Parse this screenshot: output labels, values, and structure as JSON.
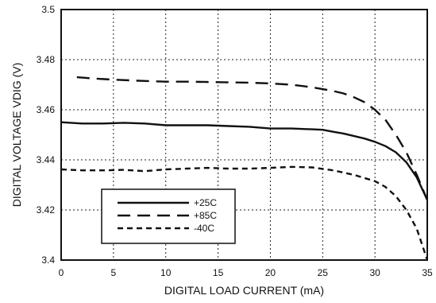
{
  "chart_data": {
    "type": "line",
    "title": "",
    "xlabel": "DIGITAL LOAD CURRENT (mA)",
    "ylabel": "DIGITAL VOLTAGE VDIG (V)",
    "xlim": [
      0,
      35
    ],
    "ylim": [
      3.4,
      3.5
    ],
    "x_ticks": [
      0,
      5,
      10,
      15,
      20,
      25,
      30,
      35
    ],
    "x_tick_labels": [
      "0",
      "5",
      "10",
      "15",
      "20",
      "25",
      "30",
      "35"
    ],
    "y_ticks": [
      3.4,
      3.42,
      3.44,
      3.46,
      3.48,
      3.5
    ],
    "y_tick_labels": [
      "3.4",
      "3.42",
      "3.44",
      "3.46",
      "3.48",
      "3.5"
    ],
    "grid": true,
    "legend_position": "bottom-left",
    "series": [
      {
        "name": "+25C",
        "style": "solid",
        "color": "#111111",
        "x": [
          0,
          2,
          4,
          6,
          8,
          10,
          12,
          14,
          16,
          18,
          20,
          22,
          24,
          25,
          26,
          27,
          28,
          29,
          30,
          31,
          32,
          33,
          34,
          35
        ],
        "y": [
          3.455,
          3.4545,
          3.4545,
          3.4548,
          3.4545,
          3.4538,
          3.4538,
          3.4538,
          3.4535,
          3.4532,
          3.4525,
          3.4525,
          3.4522,
          3.452,
          3.4512,
          3.4505,
          3.4495,
          3.4485,
          3.4472,
          3.4455,
          3.443,
          3.439,
          3.433,
          3.424
        ]
      },
      {
        "name": "+85C",
        "style": "long-dash",
        "color": "#111111",
        "x": [
          1.5,
          3,
          5,
          8,
          10,
          12,
          15,
          18,
          20,
          22,
          24,
          26,
          27,
          28,
          29,
          30,
          31,
          32,
          33,
          34,
          35
        ],
        "y": [
          3.473,
          3.4725,
          3.472,
          3.4715,
          3.4712,
          3.4712,
          3.471,
          3.4708,
          3.4705,
          3.47,
          3.469,
          3.4675,
          3.4665,
          3.465,
          3.463,
          3.46,
          3.456,
          3.45,
          3.443,
          3.434,
          3.424
        ]
      },
      {
        "name": "-40C",
        "style": "short-dash",
        "color": "#111111",
        "x": [
          0,
          2,
          4,
          6,
          8,
          10,
          12,
          14,
          16,
          18,
          20,
          22,
          24,
          26,
          28,
          30,
          31,
          32,
          33,
          34,
          35
        ],
        "y": [
          3.4362,
          3.4358,
          3.4358,
          3.436,
          3.4355,
          3.4362,
          3.4365,
          3.4368,
          3.4365,
          3.4365,
          3.4368,
          3.4372,
          3.437,
          3.4358,
          3.434,
          3.4315,
          3.4292,
          3.4255,
          3.42,
          3.4125,
          3.4
        ]
      }
    ]
  }
}
